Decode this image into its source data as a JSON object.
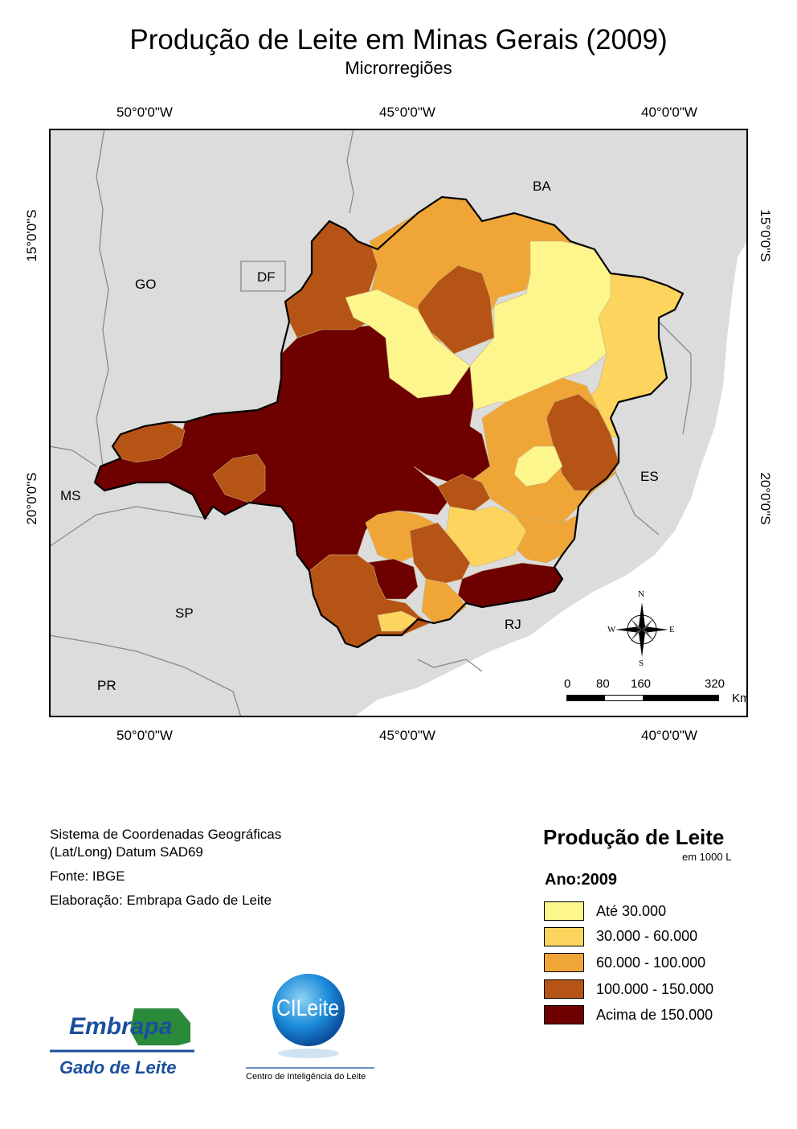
{
  "title": "Produção de Leite em Minas Gerais (2009)",
  "subtitle": "Microrregiões",
  "grid": {
    "lon_labels": [
      "50°0'0\"W",
      "45°0'0\"W",
      "40°0'0\"W"
    ],
    "lat_labels": [
      "15°0'0\"S",
      "20°0'0\"S"
    ]
  },
  "states": {
    "BA": "BA",
    "GO": "GO",
    "DF": "DF",
    "MS": "MS",
    "ES": "ES",
    "SP": "SP",
    "RJ": "RJ",
    "PR": "PR"
  },
  "compass": {
    "n": "N",
    "s": "S",
    "e": "E",
    "w": "W"
  },
  "scalebar": {
    "ticks": [
      "0",
      "80",
      "160",
      "320"
    ],
    "unit": "Km"
  },
  "notes": {
    "coord_system_line1": "Sistema de Coordenadas Geográficas",
    "coord_system_line2": "(Lat/Long) Datum SAD69",
    "source": "Fonte: IBGE",
    "author": "Elaboração: Embrapa Gado de Leite"
  },
  "legend": {
    "title": "Produção de Leite",
    "unit": "em 1000 L",
    "year": "Ano:2009",
    "classes": [
      {
        "label": "Até 30.000",
        "color": "#fdf68d"
      },
      {
        "label": "30.000 - 60.000",
        "color": "#fcd45e"
      },
      {
        "label": "60.000 - 100.000",
        "color": "#efa637"
      },
      {
        "label": "100.000 - 150.000",
        "color": "#b55415"
      },
      {
        "label": "Acima de 150.000",
        "color": "#6e0000"
      }
    ]
  },
  "logos": {
    "embrapa_name": "Embrapa",
    "embrapa_sub": "Gado de Leite",
    "cileite_name": "CILeite",
    "cileite_sub": "Centro de Inteligência do Leite"
  },
  "colors": {
    "neighbor_fill": "#dcdcdc",
    "ocean": "#ffffff",
    "embrapa_blue": "#1a4f9c",
    "embrapa_green": "#2a8a3a"
  }
}
